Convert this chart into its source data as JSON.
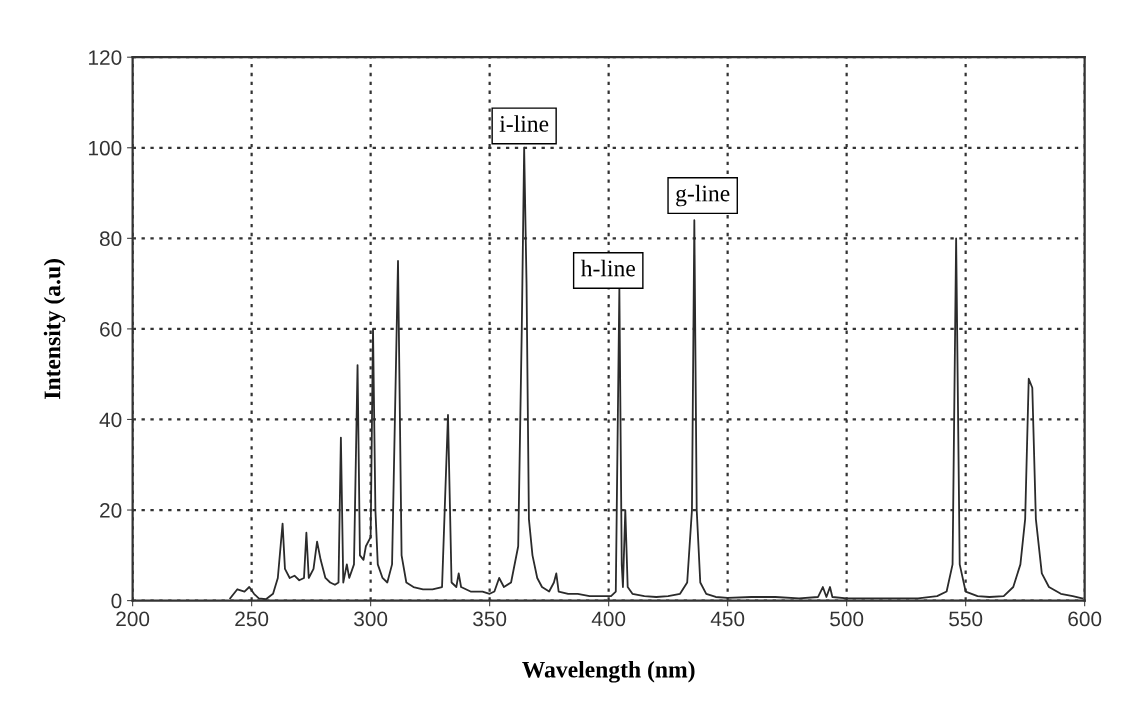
{
  "chart_data": {
    "type": "line",
    "xlabel": "Wavelength (nm)",
    "ylabel": "Intensity (a.u)",
    "xlim": [
      200,
      600
    ],
    "xticks": [
      200,
      250,
      300,
      350,
      400,
      450,
      500,
      550,
      600
    ],
    "ylim": [
      0,
      120
    ],
    "yticks": [
      0,
      20,
      40,
      60,
      80,
      100,
      120
    ],
    "grid": true,
    "line_style": "solid",
    "marker": "none",
    "series": [
      {
        "color": "#2b2b2b",
        "x": [
          241,
          244,
          247,
          249,
          251,
          253,
          256,
          259,
          261,
          263,
          264,
          266,
          268,
          270,
          272,
          273,
          274,
          276,
          277.5,
          279,
          281,
          283,
          285,
          286.5,
          287.5,
          288.5,
          290,
          291,
          293,
          294.5,
          295.5,
          297,
          298,
          300,
          301,
          302,
          303,
          305,
          307,
          309,
          311.5,
          313,
          315,
          318,
          322,
          326,
          330,
          332.5,
          334,
          336,
          337,
          338,
          342,
          347,
          350,
          352,
          354,
          356,
          359,
          362,
          363.5,
          364.5,
          365.5,
          366.5,
          368,
          370,
          372,
          375,
          377,
          378,
          379,
          383,
          387,
          392,
          397,
          401,
          403,
          404.5,
          405.5,
          406,
          407,
          408,
          410,
          415,
          420,
          425,
          430,
          433,
          435,
          436,
          437,
          438.5,
          441,
          445,
          450,
          460,
          470,
          480,
          488,
          490,
          491.5,
          493,
          494,
          500,
          510,
          520,
          530,
          538,
          542,
          544.5,
          546,
          547.5,
          550,
          555,
          560,
          566,
          570,
          573,
          575,
          576.5,
          578,
          579.5,
          582,
          585,
          590,
          595,
          599
        ],
        "values": [
          0.5,
          2.5,
          2,
          3,
          1.5,
          0.5,
          0.3,
          1.5,
          5,
          17,
          7,
          5,
          5.5,
          4.5,
          5,
          15,
          5,
          7,
          13,
          9,
          5,
          4,
          3.5,
          4,
          36,
          4,
          8,
          5,
          8,
          52,
          10,
          9,
          12,
          14,
          60,
          20,
          8,
          5,
          4,
          8,
          75,
          10,
          4,
          3,
          2.5,
          2.5,
          3,
          41,
          4,
          3,
          6,
          3,
          2,
          2,
          1.5,
          2,
          5,
          3,
          4,
          12,
          60,
          100,
          70,
          18,
          10,
          5,
          3,
          2,
          4,
          6,
          2,
          1.5,
          1.5,
          1,
          1,
          1,
          2,
          69,
          8,
          3,
          20,
          3,
          1.5,
          1,
          0.8,
          1,
          1.5,
          4,
          20,
          84,
          20,
          4,
          1.5,
          0.8,
          0.6,
          0.8,
          0.8,
          0.5,
          0.8,
          3,
          0.8,
          3,
          0.8,
          0.5,
          0.5,
          0.5,
          0.5,
          1,
          2,
          8,
          80,
          8,
          2,
          1,
          0.8,
          1,
          3,
          8,
          18,
          49,
          47,
          18,
          6,
          3,
          1.5,
          1,
          0.5
        ]
      }
    ],
    "annotations": [
      {
        "text": "i-line",
        "x": 364.5,
        "y": 100
      },
      {
        "text": "h-line",
        "x": 404.5,
        "y": 69
      },
      {
        "text": "g-line",
        "x": 436,
        "y": 84
      }
    ]
  }
}
